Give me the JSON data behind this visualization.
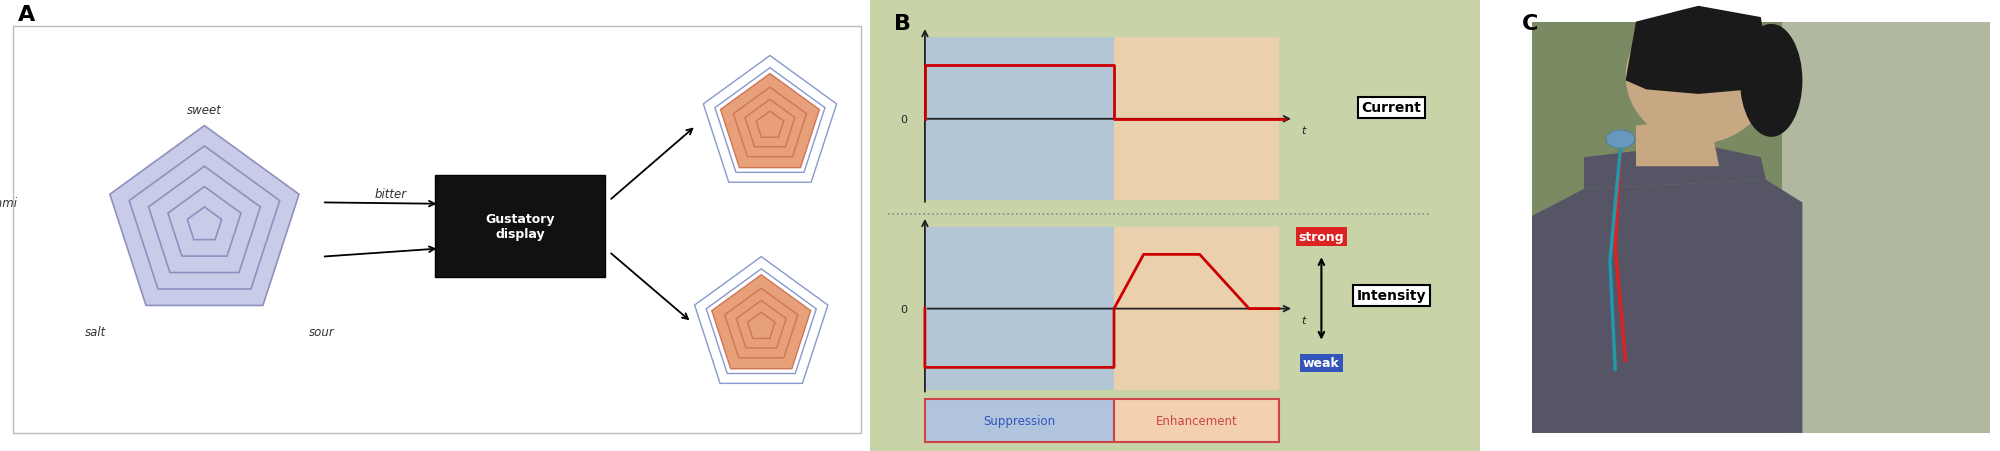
{
  "panel_A_label": "A",
  "panel_B_label": "B",
  "panel_C_label": "C",
  "pentagon_blue_fill": "#c8cce8",
  "pentagon_blue_edge": "#9090c0",
  "pentagon_orange_fill": "#e8a07a",
  "pentagon_orange_edge": "#cc7755",
  "pentagon_outline_blue": "#8899cc",
  "box_bg": "#111111",
  "box_text": "#ffffff",
  "box_label": "Gustatory\ndisplay",
  "suppression_color": "#b0c4de",
  "enhancement_color": "#f2d0b0",
  "bg_green": "#c8d4a8",
  "current_label": "Current",
  "intensity_label": "Intensity",
  "strong_label": "strong",
  "weak_label": "weak",
  "suppression_label": "Suppression",
  "enhancement_label": "Enhancement",
  "strong_bg": "#dd2222",
  "weak_bg": "#3355bb",
  "signal_color": "#cc0000",
  "axis_color": "#222222",
  "dashed_color": "#888888",
  "border_color": "#bbbbbb"
}
